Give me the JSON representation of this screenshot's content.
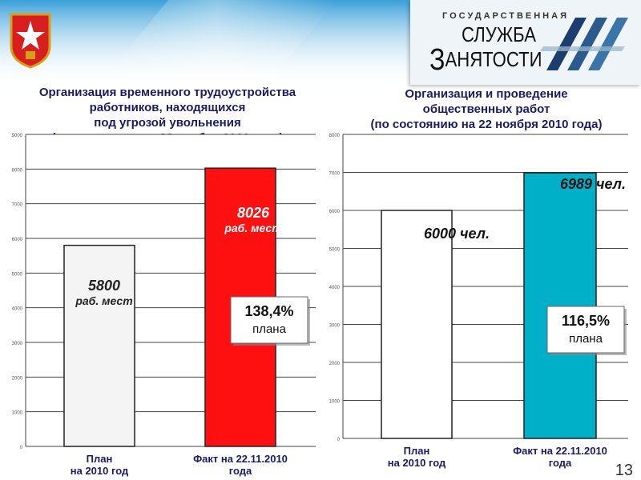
{
  "logo": {
    "line1": "ГОСУДАРСТВЕННАЯ",
    "line2": "СЛУЖБА",
    "line3_big": "З",
    "line3_rest": "АНЯТОСТИ"
  },
  "colors": {
    "red_bar": "#ff1010",
    "cyan_bar": "#00b0c8",
    "white_bar": "#f4f4f4",
    "title": "#1a1a66"
  },
  "chart_data": [
    {
      "type": "bar",
      "title_lines": [
        "Организация временного трудоустройства",
        "работников, находящихся",
        "под угрозой увольнения",
        "(по состоянию на 22 ноября 2010 года)"
      ],
      "ylim": [
        0,
        9000
      ],
      "yticks": [
        0,
        1000,
        2000,
        3000,
        4000,
        5000,
        6000,
        7000,
        8000,
        9000
      ],
      "categories": [
        [
          "План",
          "на 2010 год"
        ],
        [
          "Факт на 22.11.2010",
          "года"
        ]
      ],
      "values": [
        5800,
        8026
      ],
      "value_labels": [
        [
          "5800",
          "раб. мест"
        ],
        [
          "8026",
          "раб. мест"
        ]
      ],
      "percent_box": [
        "138,4%",
        "плана"
      ],
      "bar_colors": [
        "#f4f4f4",
        "#ff1010"
      ],
      "grid": true
    },
    {
      "type": "bar",
      "title_lines": [
        "Организация и проведение",
        "общественных работ",
        "(по состоянию на 22 ноября 2010 года)"
      ],
      "ylim": [
        0,
        8000
      ],
      "yticks": [
        0,
        1000,
        2000,
        3000,
        4000,
        5000,
        6000,
        7000,
        8000
      ],
      "categories": [
        [
          "План",
          "на 2010 год"
        ],
        [
          "Факт на 22.11.2010",
          "года"
        ]
      ],
      "values": [
        6000,
        6989
      ],
      "value_labels": [
        [
          "6000 чел."
        ],
        [
          "6989 чел."
        ]
      ],
      "percent_box": [
        "116,5%",
        "плана"
      ],
      "bar_colors": [
        "#ffffff",
        "#00b0c8"
      ],
      "grid": true
    }
  ],
  "page_number": "13"
}
